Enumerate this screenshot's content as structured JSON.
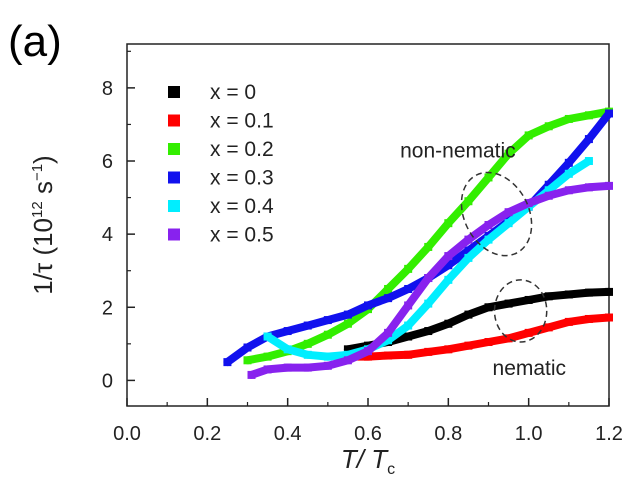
{
  "panel_label": "(a)",
  "chart_data": {
    "type": "scatter",
    "title": "",
    "xlabel_main": "T/ T",
    "xlabel_sub": "c",
    "ylabel_main": "1/τ (10",
    "ylabel_exp": "12",
    "ylabel_unit": " s",
    "ylabel_unit_exp": "−1",
    "ylabel_close": ")",
    "xlim": [
      0.0,
      1.2
    ],
    "ylim": [
      -0.7,
      9.2
    ],
    "xticks": [
      0.0,
      0.2,
      0.4,
      0.6,
      0.8,
      1.0,
      1.2
    ],
    "xtick_labels": [
      "0.0",
      "0.2",
      "0.4",
      "0.6",
      "0.8",
      "1.0",
      "1.2"
    ],
    "yticks": [
      0,
      2,
      4,
      6,
      8
    ],
    "ytick_labels": [
      "0",
      "2",
      "4",
      "6",
      "8"
    ],
    "grid": false,
    "legend_position": "top-left",
    "series": [
      {
        "name": "x = 0",
        "color": "#000000",
        "x": [
          0.55,
          0.6,
          0.65,
          0.7,
          0.75,
          0.8,
          0.85,
          0.9,
          0.95,
          1.0,
          1.05,
          1.1,
          1.15,
          1.2
        ],
        "y": [
          0.85,
          0.95,
          1.05,
          1.2,
          1.35,
          1.55,
          1.8,
          2.0,
          2.1,
          2.2,
          2.3,
          2.35,
          2.4,
          2.42
        ]
      },
      {
        "name": "x = 0.1",
        "color": "#ff0000",
        "x": [
          0.55,
          0.6,
          0.65,
          0.7,
          0.75,
          0.8,
          0.85,
          0.9,
          0.95,
          1.0,
          1.05,
          1.1,
          1.15,
          1.2
        ],
        "y": [
          0.65,
          0.65,
          0.68,
          0.7,
          0.78,
          0.85,
          0.95,
          1.05,
          1.15,
          1.3,
          1.45,
          1.6,
          1.68,
          1.72
        ]
      },
      {
        "name": "x = 0.2",
        "color": "#33ee00",
        "x": [
          0.3,
          0.35,
          0.4,
          0.45,
          0.5,
          0.55,
          0.6,
          0.65,
          0.7,
          0.75,
          0.8,
          0.85,
          0.9,
          0.95,
          1.0,
          1.05,
          1.1,
          1.15,
          1.2
        ],
        "y": [
          0.55,
          0.65,
          0.8,
          1.0,
          1.25,
          1.55,
          1.95,
          2.5,
          3.05,
          3.65,
          4.3,
          4.9,
          5.55,
          6.2,
          6.7,
          6.95,
          7.15,
          7.25,
          7.35
        ]
      },
      {
        "name": "x = 0.3",
        "color": "#1111ee",
        "x": [
          0.25,
          0.3,
          0.35,
          0.4,
          0.45,
          0.5,
          0.55,
          0.6,
          0.65,
          0.7,
          0.75,
          0.8,
          0.85,
          0.9,
          0.95,
          1.0,
          1.05,
          1.1,
          1.15,
          1.2
        ],
        "y": [
          0.5,
          0.9,
          1.2,
          1.35,
          1.5,
          1.65,
          1.8,
          2.05,
          2.25,
          2.5,
          2.8,
          3.15,
          3.55,
          3.95,
          4.35,
          4.75,
          5.35,
          5.95,
          6.6,
          7.3
        ]
      },
      {
        "name": "x = 0.4",
        "color": "#00eeff",
        "x": [
          0.35,
          0.4,
          0.45,
          0.5,
          0.55,
          0.6,
          0.65,
          0.7,
          0.75,
          0.8,
          0.85,
          0.9,
          0.95,
          1.0,
          1.05,
          1.1,
          1.15
        ],
        "y": [
          1.2,
          0.85,
          0.7,
          0.65,
          0.7,
          0.85,
          1.1,
          1.5,
          2.1,
          2.75,
          3.35,
          3.85,
          4.3,
          4.75,
          5.2,
          5.65,
          6.0
        ]
      },
      {
        "name": "x = 0.5",
        "color": "#8822ee",
        "x": [
          0.31,
          0.35,
          0.4,
          0.45,
          0.5,
          0.55,
          0.6,
          0.65,
          0.7,
          0.75,
          0.8,
          0.85,
          0.9,
          0.95,
          1.0,
          1.05,
          1.1,
          1.15,
          1.2
        ],
        "y": [
          0.15,
          0.3,
          0.35,
          0.35,
          0.4,
          0.55,
          0.8,
          1.3,
          2.05,
          2.8,
          3.4,
          3.85,
          4.25,
          4.6,
          4.85,
          5.05,
          5.2,
          5.28,
          5.32
        ]
      }
    ],
    "annotations": [
      {
        "text": "non-nematic",
        "x": 0.68,
        "y": 6.1
      },
      {
        "text": "nematic",
        "x": 0.91,
        "y": 0.15
      }
    ],
    "ellipses": [
      {
        "name": "non-nematic-region",
        "cx": 0.92,
        "cy": 4.55,
        "rx": 0.08,
        "ry": 1.2,
        "angle": 28
      },
      {
        "name": "nematic-region",
        "cx": 0.98,
        "cy": 1.9,
        "rx": 0.065,
        "ry": 0.85,
        "angle": 0
      }
    ]
  }
}
